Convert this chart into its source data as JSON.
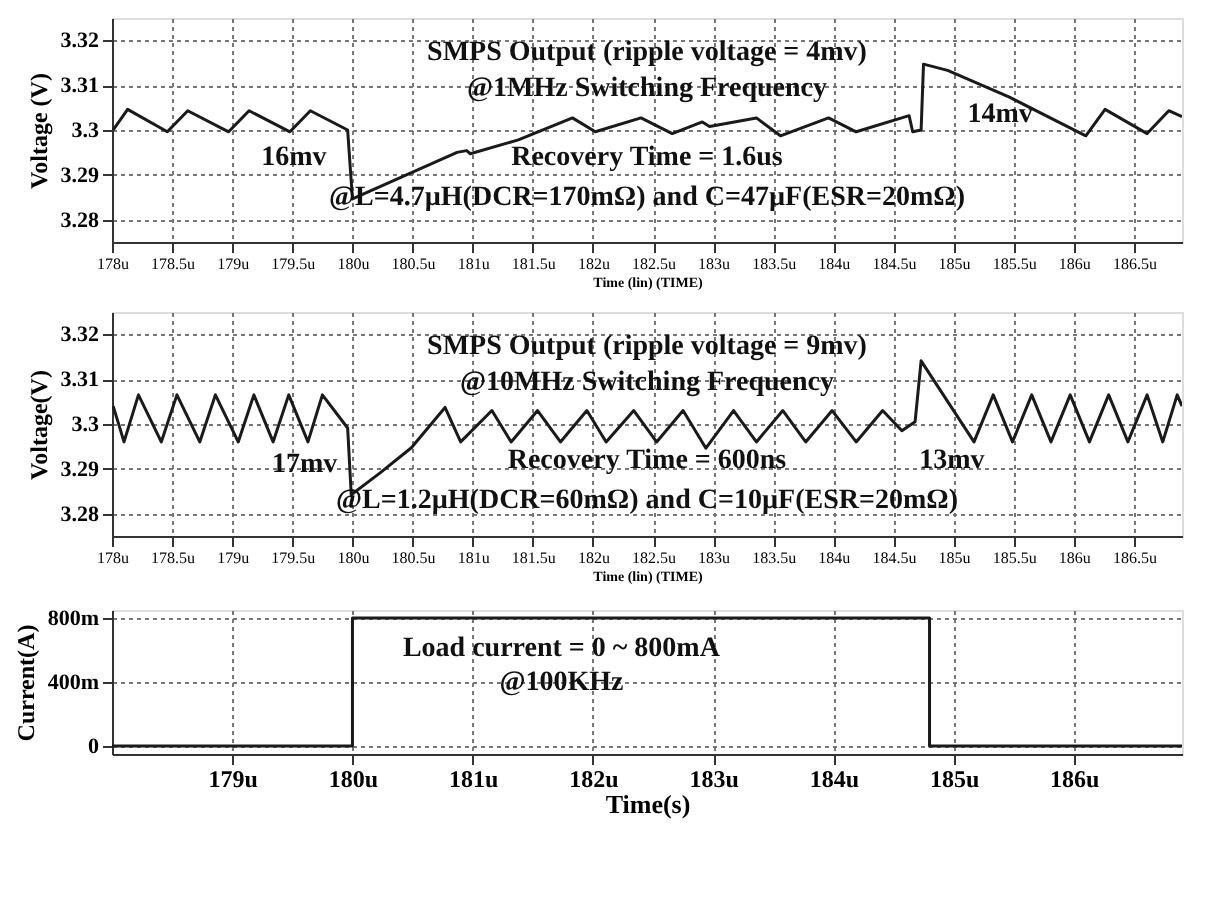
{
  "chart_data": [
    {
      "type": "line",
      "title": "SMPS Output (ripple voltage = 4mv)",
      "subtitle": "@1MHz Switching Frequency",
      "xlabel": "Time (lin) (TIME)",
      "ylabel": "Voltage (V)",
      "grid": true,
      "line_style": "solid",
      "marker": "none",
      "xlim": [
        178,
        186.9
      ],
      "ylim": [
        3.275,
        3.325
      ],
      "xticks": [
        {
          "value": 178,
          "label": "178u"
        },
        {
          "value": 178.5,
          "label": "178.5u"
        },
        {
          "value": 179,
          "label": "179u"
        },
        {
          "value": 179.5,
          "label": "179.5u"
        },
        {
          "value": 180,
          "label": "180u"
        },
        {
          "value": 180.5,
          "label": "180.5u"
        },
        {
          "value": 181,
          "label": "181u"
        },
        {
          "value": 181.5,
          "label": "181.5u"
        },
        {
          "value": 182,
          "label": "182u"
        },
        {
          "value": 182.5,
          "label": "182.5u"
        },
        {
          "value": 183,
          "label": "183u"
        },
        {
          "value": 183.5,
          "label": "183.5u"
        },
        {
          "value": 184,
          "label": "184u"
        },
        {
          "value": 184.5,
          "label": "184.5u"
        },
        {
          "value": 185,
          "label": "185u"
        },
        {
          "value": 185.5,
          "label": "185.5u"
        },
        {
          "value": 186,
          "label": "186u"
        },
        {
          "value": 186.5,
          "label": "186.5u"
        }
      ],
      "yticks": [
        3.28,
        3.29,
        {
          "value": 3.3,
          "label": "3.3"
        },
        3.31,
        3.32
      ],
      "annotations": [
        "16mv",
        "14mv",
        "Recovery Time = 1.6us",
        "@L=4.7µH(DCR=170mΩ) and C=47µF(ESR=20mΩ)"
      ],
      "series": [
        {
          "color": "#1a1a1a",
          "x": [
            178.01,
            178.13,
            178.46,
            178.63,
            178.97,
            179.14,
            179.48,
            179.65,
            179.96,
            180.0,
            180.87,
            180.95,
            180.98,
            181.38,
            181.83,
            182.02,
            182.4,
            182.66,
            182.91,
            182.97,
            183.36,
            183.56,
            183.96,
            184.19,
            184.63,
            184.66,
            184.73,
            184.75,
            184.95,
            185.46,
            186.1,
            186.26,
            186.61,
            186.79,
            186.9
          ],
          "values": [
            3.3,
            3.3046,
            3.2996,
            3.3043,
            3.2996,
            3.3043,
            3.2996,
            3.3043,
            3.3,
            3.2846,
            3.295,
            3.2954,
            3.2947,
            3.2978,
            3.3027,
            3.2996,
            3.3027,
            3.2992,
            3.3018,
            3.3008,
            3.3027,
            3.2987,
            3.3027,
            3.2996,
            3.3032,
            3.2996,
            3.3,
            3.3147,
            3.3133,
            3.3074,
            3.2987,
            3.3046,
            3.2992,
            3.3043,
            3.303
          ]
        }
      ]
    },
    {
      "type": "line",
      "title": "SMPS Output (ripple voltage = 9mv)",
      "subtitle": "@10MHz Switching Frequency",
      "xlabel": "Time (lin) (TIME)",
      "ylabel": "Voltage(V)",
      "grid": true,
      "line_style": "solid",
      "marker": "none",
      "xlim": [
        178,
        186.9
      ],
      "ylim": [
        3.275,
        3.325
      ],
      "xticks": [
        {
          "value": 178,
          "label": "178u"
        },
        {
          "value": 178.5,
          "label": "178.5u"
        },
        {
          "value": 179,
          "label": "179u"
        },
        {
          "value": 179.5,
          "label": "179.5u"
        },
        {
          "value": 180,
          "label": "180u"
        },
        {
          "value": 180.5,
          "label": "180.5u"
        },
        {
          "value": 181,
          "label": "181u"
        },
        {
          "value": 181.5,
          "label": "181.5u"
        },
        {
          "value": 182,
          "label": "182u"
        },
        {
          "value": 182.5,
          "label": "182.5u"
        },
        {
          "value": 183,
          "label": "183u"
        },
        {
          "value": 183.5,
          "label": "183.5u"
        },
        {
          "value": 184,
          "label": "184u"
        },
        {
          "value": 184.5,
          "label": "184.5u"
        },
        {
          "value": 185,
          "label": "185u"
        },
        {
          "value": 185.5,
          "label": "185.5u"
        },
        {
          "value": 186,
          "label": "186u"
        },
        {
          "value": 186.5,
          "label": "186.5u"
        }
      ],
      "yticks": [
        3.28,
        3.29,
        {
          "value": 3.3,
          "label": "3.3"
        },
        3.31,
        3.32
      ],
      "annotations": [
        "17mv",
        "13mv",
        "Recovery Time = 600ns",
        "@L=1.2µH(DCR=60mΩ) and C=10µF(ESR=20mΩ)"
      ],
      "series": [
        {
          "color": "#1a1a1a",
          "x": [
            178.01,
            178.1,
            178.22,
            178.41,
            178.54,
            178.73,
            178.86,
            179.05,
            179.18,
            179.34,
            179.47,
            179.63,
            179.75,
            179.96,
            179.99,
            180.23,
            180.49,
            180.77,
            180.9,
            181.16,
            181.32,
            181.54,
            181.73,
            181.95,
            182.11,
            182.34,
            182.53,
            182.75,
            182.94,
            183.17,
            183.36,
            183.58,
            183.77,
            183.99,
            184.19,
            184.41,
            184.57,
            184.68,
            184.73,
            185.17,
            185.33,
            185.49,
            185.65,
            185.81,
            185.97,
            186.13,
            186.29,
            186.45,
            186.61,
            186.74,
            186.86,
            186.9
          ],
          "values": [
            3.304,
            3.296,
            3.3065,
            3.296,
            3.3065,
            3.296,
            3.3065,
            3.296,
            3.3065,
            3.296,
            3.3065,
            3.296,
            3.3065,
            3.2991,
            3.2842,
            3.2891,
            3.2947,
            3.3037,
            3.296,
            3.303,
            3.296,
            3.303,
            3.296,
            3.303,
            3.296,
            3.303,
            3.296,
            3.303,
            3.2946,
            3.303,
            3.296,
            3.303,
            3.296,
            3.303,
            3.296,
            3.303,
            3.2985,
            3.3005,
            3.3141,
            3.296,
            3.3065,
            3.296,
            3.3065,
            3.296,
            3.3065,
            3.296,
            3.3065,
            3.296,
            3.3065,
            3.296,
            3.3065,
            3.304
          ]
        }
      ]
    },
    {
      "type": "line",
      "title": "Load current = 0 ~ 800mA",
      "subtitle": "@100KHz",
      "xlabel": "Time(s)",
      "ylabel": "Current(A)",
      "grid": true,
      "line_style": "solid",
      "marker": "none",
      "xlim": [
        178,
        186.9
      ],
      "ylim": [
        -50,
        850
      ],
      "xticks": [
        {
          "value": 179,
          "label": "179u"
        },
        {
          "value": 180,
          "label": "180u"
        },
        {
          "value": 181,
          "label": "181u"
        },
        {
          "value": 182,
          "label": "182u"
        },
        {
          "value": 183,
          "label": "183u"
        },
        {
          "value": 184,
          "label": "184u"
        },
        {
          "value": 185,
          "label": "185u"
        },
        {
          "value": 186,
          "label": "186u"
        }
      ],
      "yticks": [
        {
          "value": 0,
          "label": "0"
        },
        {
          "value": 400,
          "label": "400m"
        },
        {
          "value": 800,
          "label": "800m"
        }
      ],
      "series": [
        {
          "color": "#1a1a1a",
          "x": [
            178,
            180,
            180,
            184.8,
            184.8,
            186.9
          ],
          "values": [
            0,
            0,
            800,
            800,
            0,
            0
          ]
        }
      ]
    }
  ]
}
